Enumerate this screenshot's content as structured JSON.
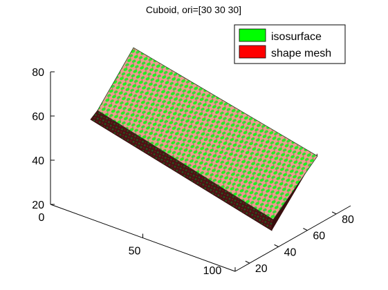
{
  "chart_data": {
    "type": "3d-surface",
    "title": "Cuboid, ori=[30 30 30]",
    "xlabel": "",
    "ylabel": "",
    "zlabel": "",
    "axes": {
      "x": {
        "ticks": [
          0,
          50,
          100
        ],
        "range": [
          0,
          100
        ]
      },
      "y": {
        "ticks": [
          20,
          40,
          60,
          80
        ],
        "range": [
          10,
          90
        ]
      },
      "z": {
        "ticks": [
          20,
          40,
          60,
          80
        ],
        "range": [
          20,
          80
        ]
      }
    },
    "grid": false,
    "legend": {
      "placement": "top-right",
      "entries": [
        {
          "label": "isosurface",
          "color": "#00ff00"
        },
        {
          "label": "shape mesh",
          "color": "#ff0000"
        }
      ]
    },
    "series": [
      {
        "name": "isosurface",
        "color": "#00ff00"
      },
      {
        "name": "shape mesh",
        "color": "#ff0000"
      }
    ],
    "shape": {
      "kind": "cuboid",
      "orientation_deg": [
        30,
        30,
        30
      ],
      "top_face_color": "#f08c8c",
      "side_face_color": "#5a1a1a"
    }
  }
}
